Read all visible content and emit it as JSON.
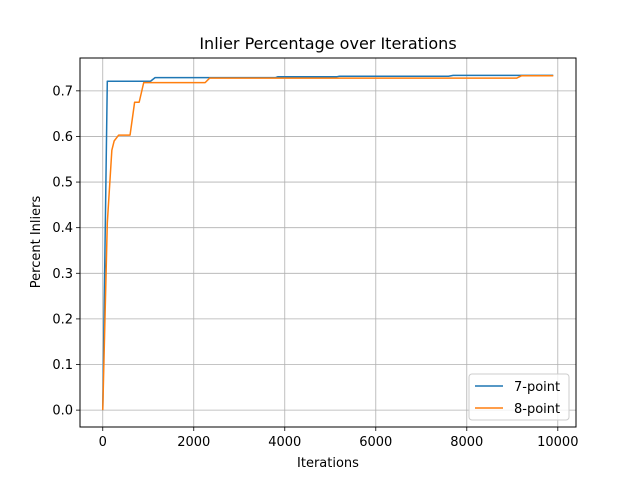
{
  "chart_data": {
    "type": "line",
    "title": "Inlier Percentage over Iterations",
    "xlabel": "Iterations",
    "ylabel": "Percent Inliers",
    "xlim": [
      -500,
      10400
    ],
    "ylim": [
      -0.037,
      0.772
    ],
    "xticks": [
      0,
      2000,
      4000,
      6000,
      8000,
      10000
    ],
    "yticks": [
      0.0,
      0.1,
      0.2,
      0.3,
      0.4,
      0.5,
      0.6,
      0.7
    ],
    "xtick_labels": [
      "0",
      "2000",
      "4000",
      "6000",
      "8000",
      "10000"
    ],
    "ytick_labels": [
      "0.0",
      "0.1",
      "0.2",
      "0.3",
      "0.4",
      "0.5",
      "0.6",
      "0.7"
    ],
    "grid": true,
    "legend_position": "lower-right",
    "series": [
      {
        "name": "7-point",
        "color": "#1f77b4",
        "points": [
          [
            0,
            0.0
          ],
          [
            100,
            0.721
          ],
          [
            1050,
            0.721
          ],
          [
            1150,
            0.729
          ],
          [
            3800,
            0.729
          ],
          [
            3850,
            0.731
          ],
          [
            5150,
            0.731
          ],
          [
            5200,
            0.732
          ],
          [
            7600,
            0.732
          ],
          [
            7700,
            0.734
          ],
          [
            9900,
            0.734
          ]
        ]
      },
      {
        "name": "8-point",
        "color": "#ff7f0e",
        "points": [
          [
            0,
            0.0
          ],
          [
            100,
            0.41
          ],
          [
            200,
            0.57
          ],
          [
            250,
            0.59
          ],
          [
            350,
            0.603
          ],
          [
            600,
            0.603
          ],
          [
            700,
            0.675
          ],
          [
            800,
            0.675
          ],
          [
            900,
            0.718
          ],
          [
            1000,
            0.718
          ],
          [
            2250,
            0.718
          ],
          [
            2350,
            0.728
          ],
          [
            4000,
            0.728
          ],
          [
            9100,
            0.728
          ],
          [
            9200,
            0.733
          ],
          [
            9900,
            0.733
          ]
        ]
      }
    ]
  }
}
